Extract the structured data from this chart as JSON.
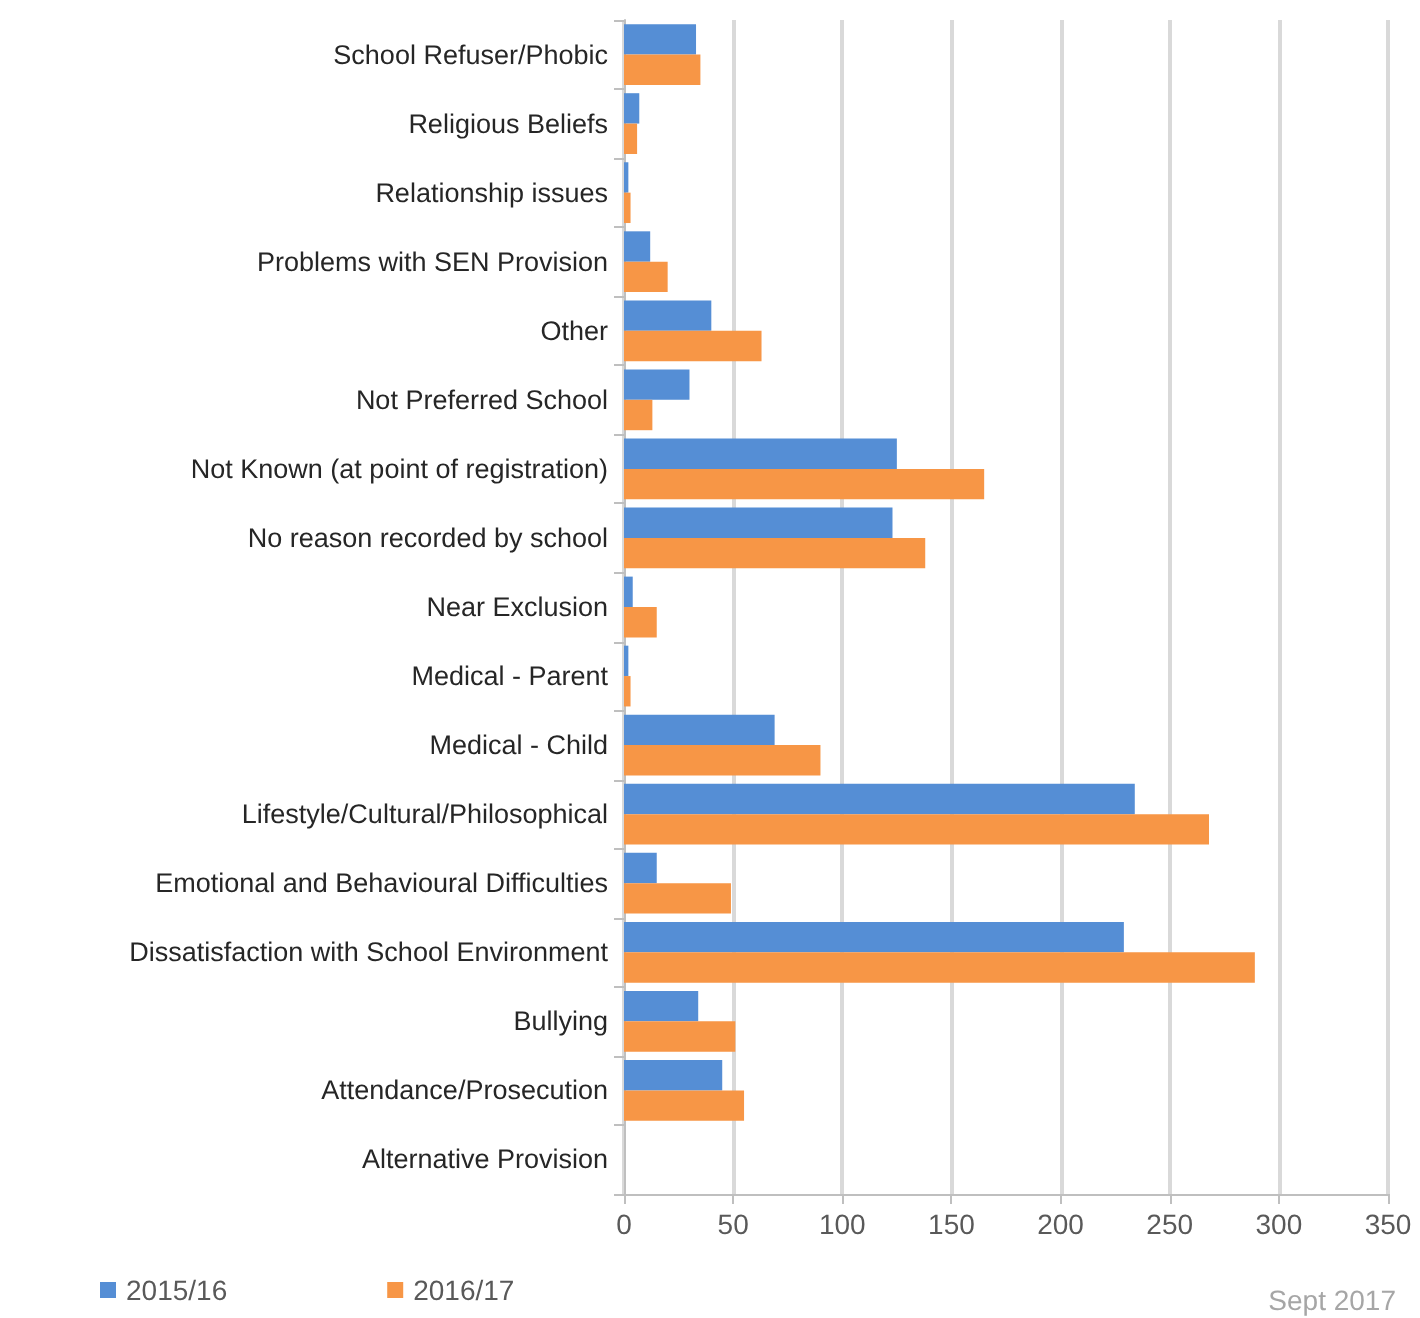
{
  "chart_data": {
    "type": "bar",
    "orientation": "horizontal",
    "categories": [
      "School Refuser/Phobic",
      "Religious Beliefs",
      "Relationship issues",
      "Problems with SEN Provision",
      "Other",
      "Not Preferred School",
      "Not Known (at point of registration)",
      "No reason recorded by school",
      "Near Exclusion",
      "Medical - Parent",
      "Medical - Child",
      "Lifestyle/Cultural/Philosophical",
      "Emotional and Behavioural Difficulties",
      "Dissatisfaction with School Environment",
      "Bullying",
      "Attendance/Prosecution",
      "Alternative Provision"
    ],
    "series": [
      {
        "name": "2015/16",
        "color": "#558ed5",
        "values": [
          33,
          7,
          2,
          12,
          40,
          30,
          125,
          123,
          4,
          2,
          69,
          234,
          15,
          229,
          34,
          45,
          0
        ]
      },
      {
        "name": "2016/17",
        "color": "#f79646",
        "values": [
          35,
          6,
          3,
          20,
          63,
          13,
          165,
          138,
          15,
          3,
          90,
          268,
          49,
          289,
          51,
          55,
          0
        ]
      }
    ],
    "xlim": [
      0,
      350
    ],
    "xticks": [
      0,
      50,
      100,
      150,
      200,
      250,
      300,
      350
    ],
    "grid": "x",
    "legend": "bottom left",
    "annotations": [
      "Sept 2017"
    ]
  }
}
